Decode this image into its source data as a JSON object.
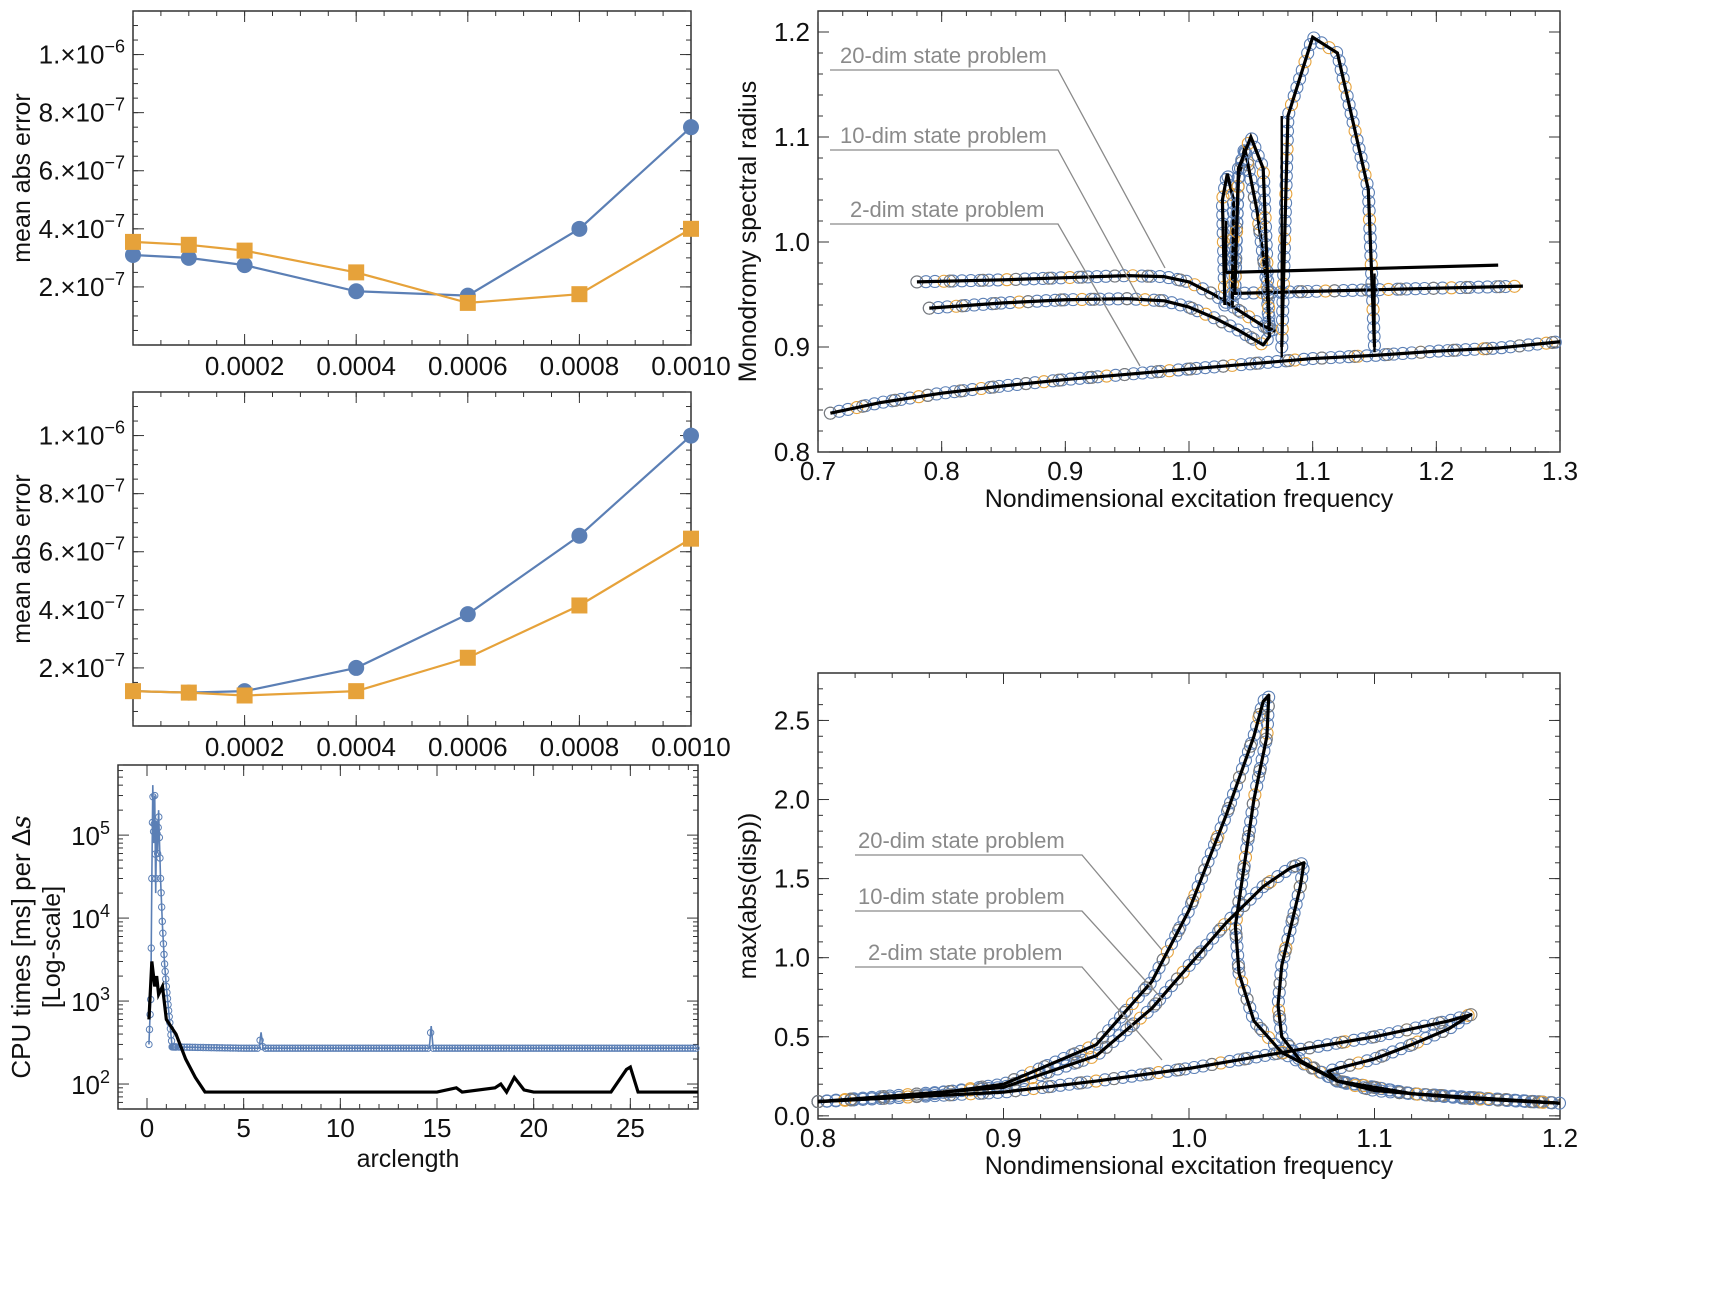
{
  "colors": {
    "blue": "#5b7fb5",
    "orange": "#e6a23a",
    "black": "#000000",
    "annotation": "#8a8a8a",
    "gray_marker": "#7a7a7a"
  },
  "chart_data": [
    {
      "type": "line",
      "xlim": [
        0,
        0.001
      ],
      "ylim": [
        0,
        1.15e-06
      ],
      "ylabel": "mean abs error",
      "xticks": [
        "0.0002",
        "0.0004",
        "0.0006",
        "0.0008",
        "0.0010"
      ],
      "yticks": [
        {
          "base": "2.×10",
          "exp": "−7"
        },
        {
          "base": "4.×10",
          "exp": "−7"
        },
        {
          "base": "6.×10",
          "exp": "−7"
        },
        {
          "base": "8.×10",
          "exp": "−7"
        },
        {
          "base": "1.×10",
          "exp": "−6"
        }
      ],
      "x": [
        0,
        0.0001,
        0.0002,
        0.0004,
        0.0006,
        0.0008,
        0.001
      ],
      "series": [
        {
          "marker": "circle",
          "color": "blue",
          "values": [
            3.1e-07,
            3e-07,
            2.75e-07,
            1.85e-07,
            1.7e-07,
            4e-07,
            7.5e-07
          ]
        },
        {
          "marker": "square",
          "color": "orange",
          "values": [
            3.55e-07,
            3.45e-07,
            3.25e-07,
            2.5e-07,
            1.45e-07,
            1.75e-07,
            4e-07
          ]
        }
      ]
    },
    {
      "type": "line",
      "xlim": [
        0,
        0.001
      ],
      "ylim": [
        0,
        1.15e-06
      ],
      "ylabel": "mean abs error",
      "xticks": [
        "0.0002",
        "0.0004",
        "0.0006",
        "0.0008",
        "0.0010"
      ],
      "yticks": [
        {
          "base": "2.×10",
          "exp": "−7"
        },
        {
          "base": "4.×10",
          "exp": "−7"
        },
        {
          "base": "6.×10",
          "exp": "−7"
        },
        {
          "base": "8.×10",
          "exp": "−7"
        },
        {
          "base": "1.×10",
          "exp": "−6"
        }
      ],
      "x": [
        0,
        0.0001,
        0.0002,
        0.0004,
        0.0006,
        0.0008,
        0.001
      ],
      "series": [
        {
          "marker": "circle",
          "color": "blue",
          "values": [
            1.2e-07,
            1.15e-07,
            1.2e-07,
            2e-07,
            3.85e-07,
            6.55e-07,
            1e-06
          ]
        },
        {
          "marker": "square",
          "color": "orange",
          "values": [
            1.2e-07,
            1.15e-07,
            1.05e-07,
            1.2e-07,
            2.35e-07,
            4.15e-07,
            6.45e-07
          ]
        }
      ]
    },
    {
      "type": "line",
      "yscale": "log",
      "xlim": [
        -1.5,
        28.5
      ],
      "ylim": [
        50,
        700000
      ],
      "xlabel": "arclength",
      "ylabel_line1": "CPU times [ms] per Δ",
      "ylabel_var": "s",
      "ylabel_line2": "[Log-scale]",
      "xticks": [
        "0",
        "5",
        "10",
        "15",
        "20",
        "25"
      ],
      "yticks": [
        {
          "base": "10",
          "exp": "2"
        },
        {
          "base": "10",
          "exp": "3"
        },
        {
          "base": "10",
          "exp": "4"
        },
        {
          "base": "10",
          "exp": "5"
        }
      ],
      "series": [
        {
          "style": "blue line with open circles",
          "color": "blue",
          "points": [
            [
              0.1,
              300
            ],
            [
              0.2,
              1200
            ],
            [
              0.25,
              30000
            ],
            [
              0.3,
              400000
            ],
            [
              0.35,
              80000
            ],
            [
              0.4,
              300000
            ],
            [
              0.45,
              20000
            ],
            [
              0.5,
              150000
            ],
            [
              0.55,
              60000
            ],
            [
              0.6,
              200000
            ],
            [
              0.7,
              30000
            ],
            [
              0.8,
              8000
            ],
            [
              0.9,
              3000
            ],
            [
              1.0,
              1500
            ],
            [
              1.3,
              280
            ],
            [
              5,
              270
            ],
            [
              5.8,
              270
            ],
            [
              5.9,
              420
            ],
            [
              6.0,
              270
            ],
            [
              10,
              270
            ],
            [
              14.6,
              270
            ],
            [
              14.7,
              500
            ],
            [
              14.8,
              270
            ],
            [
              20,
              270
            ],
            [
              28.5,
              270
            ]
          ]
        },
        {
          "style": "black line",
          "color": "black",
          "points": [
            [
              0.1,
              600
            ],
            [
              0.25,
              3000
            ],
            [
              0.4,
              1500
            ],
            [
              0.5,
              2000
            ],
            [
              0.6,
              1200
            ],
            [
              0.8,
              1500
            ],
            [
              1.0,
              600
            ],
            [
              1.5,
              400
            ],
            [
              2.0,
              200
            ],
            [
              2.5,
              120
            ],
            [
              3,
              80
            ],
            [
              5,
              80
            ],
            [
              15,
              80
            ],
            [
              16,
              90
            ],
            [
              16.3,
              80
            ],
            [
              18,
              90
            ],
            [
              18.3,
              100
            ],
            [
              18.6,
              80
            ],
            [
              19,
              120
            ],
            [
              19.5,
              85
            ],
            [
              20,
              80
            ],
            [
              24,
              80
            ],
            [
              24.8,
              150
            ],
            [
              25,
              160
            ],
            [
              25.4,
              80
            ],
            [
              28.5,
              80
            ]
          ]
        }
      ]
    },
    {
      "type": "line",
      "xlim": [
        0.7,
        1.3
      ],
      "ylim": [
        0.8,
        1.22
      ],
      "xlabel": "Nondimensional excitation frequency",
      "ylabel": "Monodromy spectral radius",
      "xticks": [
        "0.7",
        "0.8",
        "0.9",
        "1.0",
        "1.1",
        "1.2",
        "1.3"
      ],
      "yticks": [
        "0.8",
        "0.9",
        "1.0",
        "1.1",
        "1.2"
      ],
      "annotations": [
        "20-dim state problem",
        "10-dim state problem",
        "2-dim state problem"
      ],
      "series": [
        {
          "name": "2-dim state problem",
          "points": [
            [
              0.71,
              0.837
            ],
            [
              0.75,
              0.847
            ],
            [
              0.8,
              0.856
            ],
            [
              0.85,
              0.863
            ],
            [
              0.9,
              0.869
            ],
            [
              0.95,
              0.874
            ],
            [
              1.0,
              0.879
            ],
            [
              1.05,
              0.884
            ],
            [
              1.1,
              0.889
            ],
            [
              1.15,
              0.892
            ],
            [
              1.2,
              0.896
            ],
            [
              1.25,
              0.899
            ],
            [
              1.3,
              0.905
            ]
          ]
        },
        {
          "name": "10-dim state problem",
          "points": [
            [
              0.79,
              0.937
            ],
            [
              0.85,
              0.942
            ],
            [
              0.9,
              0.945
            ],
            [
              0.95,
              0.946
            ],
            [
              0.98,
              0.944
            ],
            [
              1.0,
              0.938
            ],
            [
              1.02,
              0.928
            ],
            [
              1.04,
              0.916
            ],
            [
              1.06,
              0.902
            ],
            [
              1.065,
              0.91
            ],
            [
              1.063,
              0.96
            ],
            [
              1.055,
              1.03
            ],
            [
              1.05,
              1.06
            ],
            [
              1.045,
              1.09
            ],
            [
              1.04,
              1.06
            ],
            [
              1.038,
              1.0
            ],
            [
              1.037,
              0.951
            ],
            [
              1.1,
              0.953
            ],
            [
              1.2,
              0.956
            ],
            [
              1.27,
              0.958
            ]
          ]
        },
        {
          "name": "20-dim state problem",
          "points": [
            [
              0.78,
              0.962
            ],
            [
              0.85,
              0.964
            ],
            [
              0.9,
              0.966
            ],
            [
              0.95,
              0.968
            ],
            [
              0.98,
              0.967
            ],
            [
              1.0,
              0.962
            ],
            [
              1.02,
              0.95
            ],
            [
              1.04,
              0.935
            ],
            [
              1.06,
              0.92
            ],
            [
              1.07,
              0.915
            ]
          ]
        }
      ]
    },
    {
      "type": "line",
      "xlim": [
        0.8,
        1.2
      ],
      "ylim": [
        -0.02,
        2.8
      ],
      "xlabel": "Nondimensional excitation frequency",
      "ylabel": "max(abs(disp))",
      "xticks": [
        "0.8",
        "0.9",
        "1.0",
        "1.1",
        "1.2"
      ],
      "yticks": [
        "0.0",
        "0.5",
        "1.0",
        "1.5",
        "2.0",
        "2.5"
      ],
      "annotations": [
        "20-dim state problem",
        "10-dim state problem",
        "2-dim state problem"
      ],
      "series": [
        {
          "name": "20-dim state problem",
          "points": [
            [
              0.8,
              0.09
            ],
            [
              0.85,
              0.12
            ],
            [
              0.9,
              0.2
            ],
            [
              0.95,
              0.45
            ],
            [
              0.98,
              0.85
            ],
            [
              1.0,
              1.3
            ],
            [
              1.02,
              1.9
            ],
            [
              1.035,
              2.4
            ],
            [
              1.04,
              2.62
            ],
            [
              1.043,
              2.66
            ],
            [
              1.042,
              2.4
            ],
            [
              1.035,
              2.0
            ],
            [
              1.03,
              1.6
            ],
            [
              1.025,
              1.2
            ],
            [
              1.027,
              0.9
            ],
            [
              1.035,
              0.6
            ],
            [
              1.05,
              0.4
            ],
            [
              1.08,
              0.22
            ],
            [
              1.12,
              0.14
            ],
            [
              1.2,
              0.08
            ]
          ]
        },
        {
          "name": "10-dim state problem",
          "points": [
            [
              0.8,
              0.09
            ],
            [
              0.9,
              0.18
            ],
            [
              0.95,
              0.38
            ],
            [
              0.98,
              0.68
            ],
            [
              1.0,
              0.95
            ],
            [
              1.02,
              1.22
            ],
            [
              1.04,
              1.45
            ],
            [
              1.055,
              1.57
            ],
            [
              1.062,
              1.6
            ],
            [
              1.06,
              1.45
            ],
            [
              1.055,
              1.2
            ],
            [
              1.05,
              0.95
            ],
            [
              1.048,
              0.7
            ],
            [
              1.05,
              0.5
            ],
            [
              1.06,
              0.35
            ],
            [
              1.08,
              0.22
            ],
            [
              1.12,
              0.14
            ],
            [
              1.2,
              0.08
            ]
          ]
        },
        {
          "name": "2-dim state problem",
          "points": [
            [
              0.8,
              0.09
            ],
            [
              0.9,
              0.15
            ],
            [
              0.95,
              0.22
            ],
            [
              1.0,
              0.3
            ],
            [
              1.05,
              0.4
            ],
            [
              1.1,
              0.5
            ],
            [
              1.14,
              0.6
            ],
            [
              1.152,
              0.64
            ],
            [
              1.14,
              0.55
            ],
            [
              1.12,
              0.45
            ],
            [
              1.1,
              0.36
            ],
            [
              1.08,
              0.3
            ],
            [
              1.075,
              0.28
            ],
            [
              1.08,
              0.22
            ],
            [
              1.1,
              0.16
            ],
            [
              1.15,
              0.11
            ],
            [
              1.2,
              0.08
            ]
          ]
        }
      ]
    }
  ]
}
